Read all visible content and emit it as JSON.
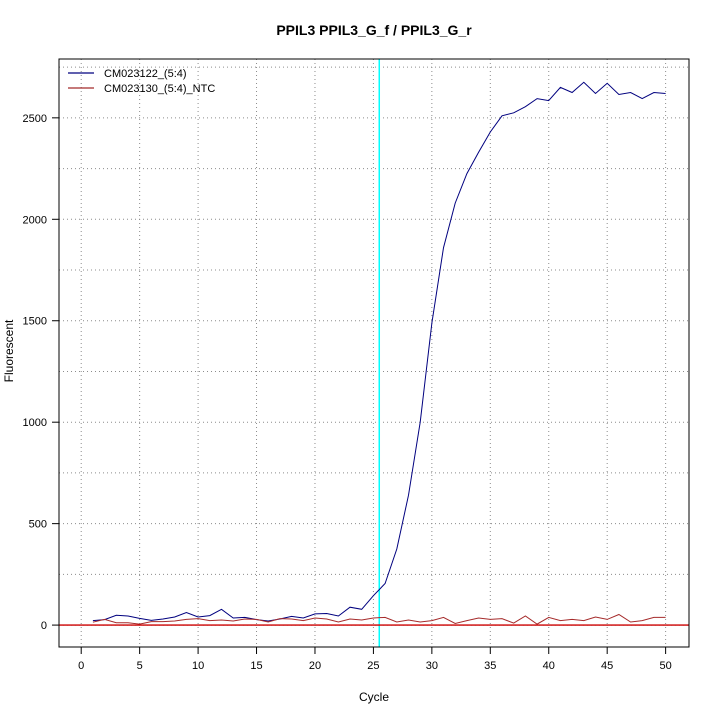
{
  "chart_data": {
    "type": "line",
    "title": "PPIL3  PPIL3_G_f / PPIL3_G_r",
    "xlabel": "Cycle",
    "ylabel": "Fluorescent",
    "xlim": [
      -1.9,
      52
    ],
    "ylim": [
      -108,
      2790
    ],
    "x_ticks": [
      0,
      5,
      10,
      15,
      20,
      25,
      30,
      35,
      40,
      45,
      50
    ],
    "y_ticks": [
      0,
      500,
      1000,
      1500,
      2000,
      2500
    ],
    "x_grid": [
      0,
      5,
      10,
      15,
      20,
      25,
      30,
      35,
      40,
      45,
      50
    ],
    "y_grid": [
      0,
      250,
      500,
      750,
      1000,
      1250,
      1500,
      1750,
      2000,
      2250,
      2500,
      2750
    ],
    "grid": true,
    "threshold_cycle": 25.5,
    "baseline": 0,
    "legend_position": "top-left",
    "colors": {
      "series1": "#00007f",
      "series2": "#a52a2a",
      "threshold": "#00ffff",
      "baseline": "#cc0000",
      "grid": "#8c8c8c"
    },
    "series": [
      {
        "name": "CM023122_(5:4)",
        "x": [
          1,
          2,
          3,
          4,
          5,
          6,
          7,
          8,
          9,
          10,
          11,
          12,
          13,
          14,
          15,
          16,
          17,
          18,
          19,
          20,
          21,
          22,
          23,
          24,
          25,
          26,
          27,
          28,
          29,
          30,
          31,
          32,
          33,
          34,
          35,
          36,
          37,
          38,
          39,
          40,
          41,
          42,
          43,
          44,
          45,
          46,
          47,
          48,
          49,
          50
        ],
        "values": [
          22,
          27,
          48,
          45,
          33,
          23,
          30,
          40,
          62,
          40,
          47,
          78,
          35,
          38,
          27,
          20,
          30,
          43,
          35,
          55,
          57,
          45,
          88,
          78,
          145,
          205,
          375,
          640,
          1000,
          1490,
          1860,
          2080,
          2225,
          2330,
          2430,
          2510,
          2525,
          2555,
          2595,
          2585,
          2650,
          2625,
          2675,
          2620,
          2670,
          2615,
          2625,
          2595,
          2625,
          2620
        ]
      },
      {
        "name": "CM023130_(5:4)_NTC",
        "x": [
          1,
          2,
          3,
          4,
          5,
          6,
          7,
          8,
          9,
          10,
          11,
          12,
          13,
          14,
          15,
          16,
          17,
          18,
          19,
          20,
          21,
          22,
          23,
          24,
          25,
          26,
          27,
          28,
          29,
          30,
          31,
          32,
          33,
          34,
          35,
          36,
          37,
          38,
          39,
          40,
          41,
          42,
          43,
          44,
          45,
          46,
          47,
          48,
          49,
          50
        ],
        "values": [
          14,
          28,
          12,
          12,
          5,
          17,
          17,
          20,
          28,
          32,
          22,
          25,
          20,
          30,
          28,
          15,
          32,
          30,
          22,
          35,
          30,
          15,
          30,
          25,
          35,
          38,
          15,
          25,
          15,
          22,
          38,
          8,
          22,
          35,
          28,
          32,
          10,
          45,
          5,
          38,
          22,
          28,
          22,
          40,
          28,
          52,
          15,
          22,
          38,
          38
        ]
      }
    ]
  }
}
